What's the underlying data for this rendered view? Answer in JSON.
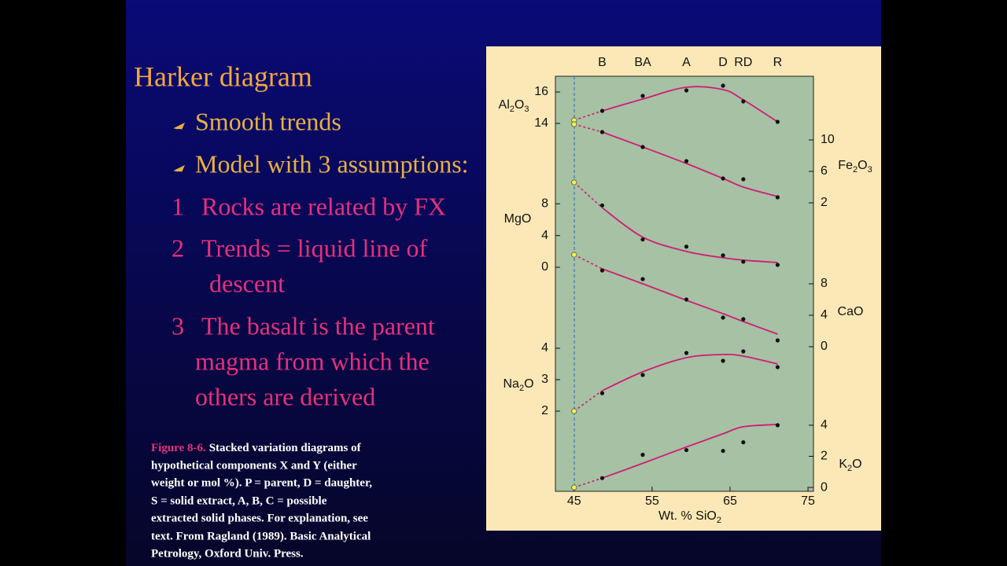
{
  "slide": {
    "title": "Harker diagram",
    "bullets": [
      "Smooth trends",
      "Model with 3 assumptions:"
    ],
    "items": [
      {
        "number": "1",
        "lines": [
          "Rocks are related by FX"
        ]
      },
      {
        "number": "2",
        "lines": [
          "Trends = liquid line of",
          "descent"
        ]
      },
      {
        "number": "3",
        "lines": [
          "The basalt is the parent",
          "magma from which the",
          "others are derived"
        ]
      }
    ],
    "caption": {
      "lead": "Figure 8-6.",
      "lines": [
        "Stacked variation diagrams of",
        "hypothetical components X and Y (either",
        "weight or mol %). P = parent, D = daughter,",
        "S = solid extract, A, B, C = possible",
        "extracted solid phases. For explanation, see",
        "text. From Ragland (1989). Basic Analytical",
        "Petrology, Oxford Univ. Press."
      ]
    }
  },
  "chart_data": {
    "type": "scatter",
    "xlabel": "Wt. % SiO2",
    "xlim": [
      42.6,
      75.7
    ],
    "xticks": [
      45,
      55,
      65,
      75
    ],
    "rocks": {
      "labels": [
        "B",
        "BA",
        "A",
        "D",
        "RD",
        "R"
      ],
      "x": [
        48.6,
        53.8,
        59.4,
        64.1,
        66.7,
        71.1
      ]
    },
    "panels": [
      {
        "ylabel": "Al2O3",
        "side": "left",
        "x": [
          45,
          48.6,
          53.8,
          59.4,
          64.1,
          66.7,
          71.1
        ],
        "values": [
          14.2,
          14.8,
          15.75,
          16.1,
          16.4,
          15.4,
          14.1
        ],
        "trend": [
          null,
          14.8,
          15.55,
          16.3,
          16.15,
          15.5,
          14.1
        ],
        "ylim": [
          13.5,
          17
        ],
        "yticks": [
          14,
          16
        ]
      },
      {
        "ylabel": "Fe2O3",
        "side": "right",
        "x": [
          45,
          48.6,
          53.8,
          59.4,
          64.1,
          66.7,
          71.1
        ],
        "values": [
          12,
          11,
          9.1,
          7.3,
          5.1,
          5.0,
          2.7
        ],
        "trend": [
          null,
          11,
          9.1,
          7.0,
          5.1,
          4.0,
          2.8
        ],
        "ylim": [
          1.5,
          12.5
        ],
        "yticks": [
          2,
          6,
          10
        ]
      },
      {
        "ylabel": "MgO",
        "side": "left",
        "x": [
          45,
          48.6,
          53.8,
          59.4,
          64.1,
          66.7,
          71.1
        ],
        "values": [
          10.7,
          7.8,
          3.5,
          2.6,
          1.5,
          0.7,
          0.3
        ],
        "trend": [
          null,
          7.5,
          3.8,
          2.0,
          1.2,
          0.9,
          0.6
        ],
        "ylim": [
          0,
          11
        ],
        "yticks": [
          0,
          4,
          8
        ]
      },
      {
        "ylabel": "CaO",
        "side": "right",
        "x": [
          45,
          48.6,
          53.8,
          59.4,
          64.1,
          66.7,
          71.1
        ],
        "values": [
          11.7,
          9.7,
          8.6,
          6,
          3.7,
          3.5,
          0.8
        ],
        "trend": [
          null,
          9.9,
          8.0,
          5.9,
          4.2,
          3.2,
          1.6
        ],
        "ylim": [
          0,
          12
        ],
        "yticks": [
          0,
          4,
          8
        ]
      },
      {
        "ylabel": "Na2O",
        "side": "left",
        "x": [
          45,
          48.6,
          53.8,
          59.4,
          64.1,
          66.7,
          71.1
        ],
        "values": [
          2.0,
          2.57,
          3.15,
          3.85,
          3.6,
          3.9,
          3.4
        ],
        "trend": [
          null,
          2.65,
          3.25,
          3.7,
          3.8,
          3.75,
          3.5
        ],
        "ylim": [
          1.9,
          4.1
        ],
        "yticks": [
          2,
          3,
          4
        ]
      },
      {
        "ylabel": "K2O",
        "side": "right",
        "x": [
          45,
          48.6,
          53.8,
          59.4,
          64.1,
          66.7,
          71.1
        ],
        "values": [
          0,
          0.6,
          2.1,
          2.4,
          2.35,
          2.9,
          4.0
        ],
        "trend": [
          null,
          0.6,
          1.55,
          2.6,
          3.45,
          3.9,
          4.05
        ],
        "ylim": [
          -0.2,
          4.5
        ],
        "yticks": [
          0,
          2,
          4
        ]
      }
    ]
  }
}
